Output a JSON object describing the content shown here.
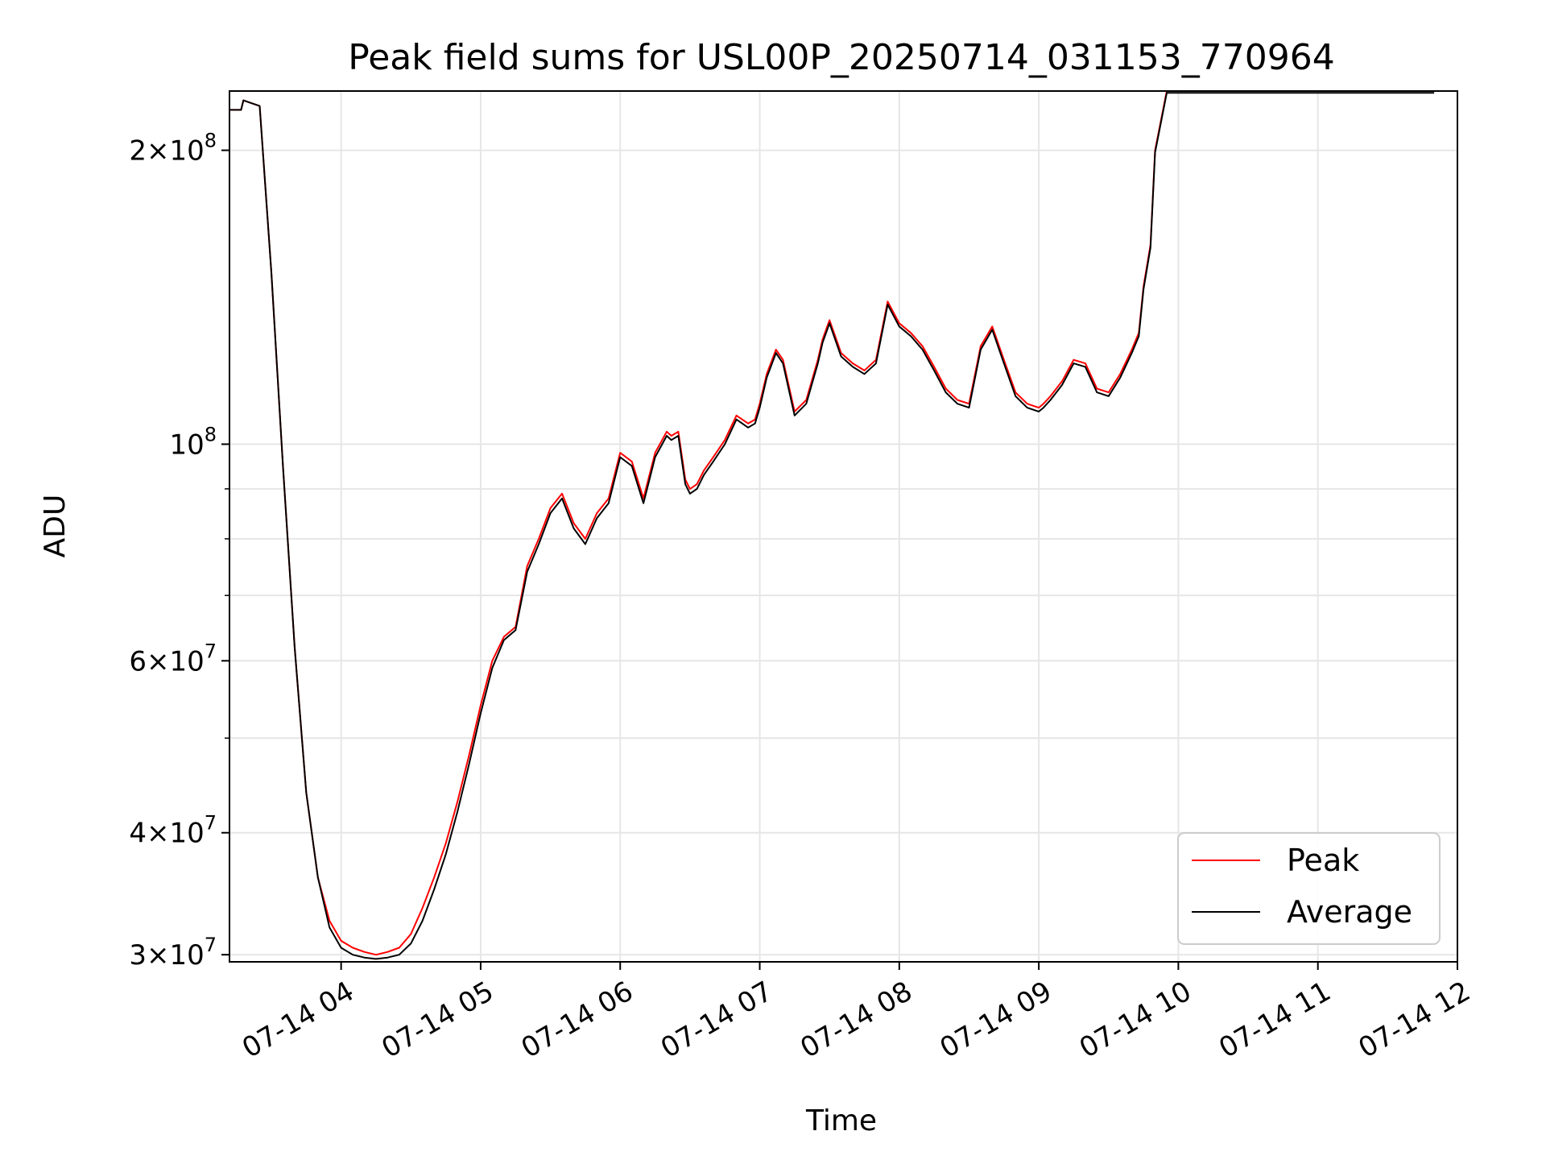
{
  "chart_data": {
    "type": "line",
    "title": "Peak field sums for USL00P_20250714_031153_770964",
    "xlabel": "Time",
    "ylabel": "ADU",
    "yscale": "log",
    "xlim": [
      "07-14 03:12",
      "07-14 12:00"
    ],
    "ylim": [
      29500000,
      230000000
    ],
    "grid": true,
    "legend_position": "lower-right",
    "x_ticks": [
      "07-14 04",
      "07-14 05",
      "07-14 06",
      "07-14 07",
      "07-14 08",
      "07-14 09",
      "07-14 10",
      "07-14 11",
      "07-14 12"
    ],
    "y_ticks": [
      {
        "value": 30000000,
        "mant": "3",
        "exp": "7"
      },
      {
        "value": 40000000,
        "mant": "4",
        "exp": "7"
      },
      {
        "value": 60000000,
        "mant": "6",
        "exp": "7"
      },
      {
        "value": 100000000,
        "mant": "",
        "exp": "8"
      },
      {
        "value": 200000000,
        "mant": "2",
        "exp": "8"
      }
    ],
    "y_minor_ticks": [
      50000000,
      70000000,
      80000000,
      90000000
    ],
    "x": [
      "03:12",
      "03:17",
      "03:18",
      "03:25",
      "03:30",
      "03:35",
      "03:40",
      "03:45",
      "03:50",
      "03:55",
      "04:00",
      "04:05",
      "04:10",
      "04:15",
      "04:20",
      "04:25",
      "04:30",
      "04:35",
      "04:40",
      "04:45",
      "04:50",
      "04:55",
      "05:00",
      "05:05",
      "05:10",
      "05:15",
      "05:20",
      "05:25",
      "05:30",
      "05:35",
      "05:40",
      "05:45",
      "05:50",
      "05:55",
      "06:00",
      "06:05",
      "06:10",
      "06:15",
      "06:20",
      "06:22",
      "06:25",
      "06:28",
      "06:30",
      "06:33",
      "06:36",
      "06:40",
      "06:45",
      "06:50",
      "06:55",
      "06:58",
      "07:00",
      "07:03",
      "07:07",
      "07:10",
      "07:15",
      "07:20",
      "07:25",
      "07:27",
      "07:30",
      "07:35",
      "07:40",
      "07:45",
      "07:50",
      "07:55",
      "08:00",
      "08:05",
      "08:10",
      "08:15",
      "08:20",
      "08:25",
      "08:30",
      "08:35",
      "08:40",
      "08:45",
      "08:50",
      "08:55",
      "09:00",
      "09:02",
      "09:05",
      "09:10",
      "09:15",
      "09:20",
      "09:25",
      "09:30",
      "09:35",
      "09:40",
      "09:43",
      "09:45",
      "09:48",
      "09:50",
      "09:55",
      "10:00",
      "10:05",
      "10:10",
      "10:12",
      "10:13",
      "10:15",
      "10:20",
      "10:25",
      "10:30",
      "10:33",
      "10:35",
      "10:40",
      "10:45",
      "10:50",
      "10:55",
      "11:00",
      "11:05",
      "11:10",
      "11:15",
      "11:20",
      "11:22",
      "11:25",
      "11:30",
      "11:35",
      "11:40",
      "11:45",
      "11:50"
    ],
    "series": [
      {
        "name": "Peak",
        "color": "#ff0000",
        "values": [
          220000000,
          220000000,
          225000000,
          222000000,
          150000000,
          95000000,
          62000000,
          44000000,
          36000000,
          32500000,
          31000000,
          30500000,
          30200000,
          30000000,
          30200000,
          30500000,
          31500000,
          33500000,
          36000000,
          39000000,
          43000000,
          48000000,
          54000000,
          60000000,
          63500000,
          65000000,
          75000000,
          80000000,
          86000000,
          89000000,
          83000000,
          80000000,
          85000000,
          88000000,
          98000000,
          96000000,
          88000000,
          98000000,
          103000000,
          102000000,
          103000000,
          92000000,
          90000000,
          91000000,
          94000000,
          97000000,
          101000000,
          107000000,
          105000000,
          106000000,
          110000000,
          118000000,
          125000000,
          122000000,
          108000000,
          111000000,
          122000000,
          128000000,
          134000000,
          124000000,
          121000000,
          119000000,
          122000000,
          140000000,
          133000000,
          130000000,
          126000000,
          120000000,
          114000000,
          111000000,
          110000000,
          126000000,
          132000000,
          122000000,
          113000000,
          110000000,
          109000000,
          110000000,
          112000000,
          116000000,
          122000000,
          121000000,
          114000000,
          113000000,
          118000000,
          125000000,
          130000000,
          145000000,
          160000000,
          200000000,
          230000000,
          230000000,
          230000000,
          230000000,
          230000000,
          230000000,
          230000000,
          230000000,
          230000000,
          230000000,
          230000000,
          230000000,
          230000000,
          230000000,
          230000000,
          230000000,
          230000000,
          230000000,
          230000000,
          230000000,
          230000000,
          230000000,
          230000000,
          230000000,
          230000000,
          230000000,
          230000000,
          230000000
        ]
      },
      {
        "name": "Average",
        "color": "#000000",
        "values": [
          220000000,
          220000000,
          225000000,
          222000000,
          150000000,
          95000000,
          62000000,
          44000000,
          36000000,
          32000000,
          30500000,
          30000000,
          29800000,
          29700000,
          29800000,
          30000000,
          30800000,
          32500000,
          35000000,
          38000000,
          42000000,
          47000000,
          53000000,
          59000000,
          63000000,
          64500000,
          74000000,
          79000000,
          85000000,
          88000000,
          82000000,
          79000000,
          84000000,
          87000000,
          97000000,
          95000000,
          87000000,
          97000000,
          102000000,
          101000000,
          102000000,
          91000000,
          89000000,
          90000000,
          93000000,
          96000000,
          100000000,
          106000000,
          104000000,
          105000000,
          109000000,
          117000000,
          124000000,
          121000000,
          107000000,
          110000000,
          121000000,
          127000000,
          133000000,
          123000000,
          120000000,
          118000000,
          121000000,
          139000000,
          132000000,
          129000000,
          125000000,
          119000000,
          113000000,
          110000000,
          109000000,
          125000000,
          131000000,
          121000000,
          112000000,
          109000000,
          108000000,
          109000000,
          111000000,
          115000000,
          121000000,
          120000000,
          113000000,
          112000000,
          117000000,
          124000000,
          129000000,
          144000000,
          159000000,
          199000000,
          229000000,
          229000000,
          229000000,
          229000000,
          229000000,
          229000000,
          229000000,
          229000000,
          229000000,
          229000000,
          229000000,
          229000000,
          229000000,
          229000000,
          229000000,
          229000000,
          229000000,
          229000000,
          229000000,
          229000000,
          229000000,
          229000000,
          229000000,
          229000000,
          229000000,
          229000000,
          229000000,
          229000000
        ]
      }
    ]
  }
}
